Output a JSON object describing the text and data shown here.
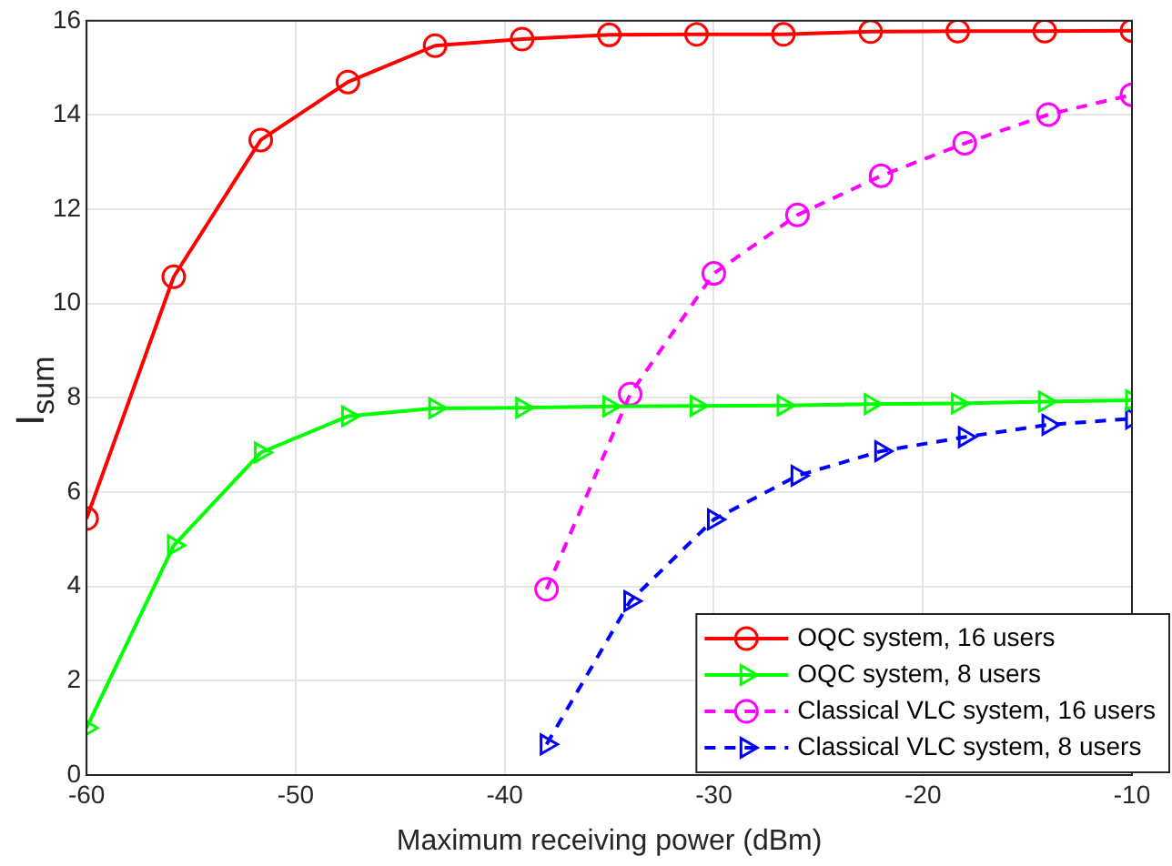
{
  "chart_data": {
    "type": "line",
    "xlabel": "Maximum receiving power (dBm)",
    "ylabel": "I$_{sum}$",
    "xlim": [
      -60,
      -10
    ],
    "xticks": [
      -60,
      -50,
      -40,
      -30,
      -20,
      -10
    ],
    "ylim": [
      0,
      16
    ],
    "yticks": [
      0,
      2,
      4,
      6,
      8,
      10,
      12,
      14,
      16
    ],
    "grid": true,
    "legend": "bottom right",
    "series": [
      {
        "name": "OQC system, 16 users",
        "color": "#ff0000",
        "marker": "circle",
        "line_style": "solid",
        "x": [
          -60,
          -55.83,
          -51.67,
          -47.5,
          -43.33,
          -39.17,
          -35,
          -30.83,
          -26.67,
          -22.5,
          -18.33,
          -14.17,
          -10
        ],
        "values": [
          5.44,
          10.57,
          13.47,
          14.7,
          15.47,
          15.61,
          15.7,
          15.71,
          15.71,
          15.77,
          15.78,
          15.78,
          15.79
        ]
      },
      {
        "name": "OQC system, 8 users",
        "color": "#00ff00",
        "marker": "triangle",
        "line_style": "solid",
        "x": [
          -60,
          -55.83,
          -51.67,
          -47.5,
          -43.33,
          -39.17,
          -35,
          -30.83,
          -26.67,
          -22.5,
          -18.33,
          -14.17,
          -10
        ],
        "values": [
          1.0,
          4.87,
          6.84,
          7.61,
          7.78,
          7.79,
          7.82,
          7.83,
          7.84,
          7.87,
          7.88,
          7.92,
          7.95
        ]
      },
      {
        "name": "Classical VLC system, 16 users",
        "color": "#ff00ff",
        "marker": "circle",
        "line_style": "dashed",
        "x": [
          -38,
          -34,
          -30,
          -26,
          -22,
          -18,
          -14,
          -10
        ],
        "values": [
          3.94,
          8.08,
          10.64,
          11.88,
          12.71,
          13.4,
          14.01,
          14.43
        ]
      },
      {
        "name": "Classical VLC system, 8 users",
        "color": "#0000ff",
        "marker": "triangle",
        "line_style": "dashed",
        "x": [
          -38,
          -34,
          -30,
          -26,
          -22,
          -18,
          -14,
          -10
        ],
        "values": [
          0.65,
          3.69,
          5.42,
          6.35,
          6.87,
          7.17,
          7.43,
          7.56
        ]
      }
    ]
  }
}
